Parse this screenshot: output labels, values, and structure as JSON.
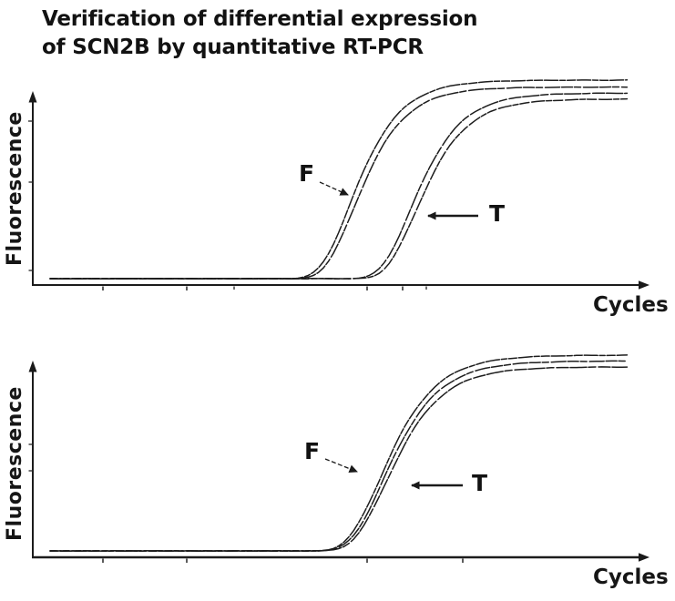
{
  "title": {
    "line1": "Verification of differential expression",
    "line2": "of SCN2B by quantitative RT-PCR"
  },
  "chart_data": [
    {
      "panel": "top",
      "type": "line",
      "xlabel": "Cycles",
      "ylabel": "Fluorescence",
      "x_axis": {
        "quantity": "PCR cycle number",
        "range_cycles": [
          0,
          40
        ],
        "tick_labels": "none"
      },
      "y_axis": {
        "quantity": "fluorescence (arbitrary units)",
        "range": [
          0,
          1
        ],
        "tick_labels": "none"
      },
      "annotations": [
        {
          "label": "F",
          "points_to": "curve pair rising earlier"
        },
        {
          "label": "T",
          "points_to": "curve pair rising later"
        }
      ],
      "series": [
        {
          "name": "F-1",
          "group": "F",
          "shape": "gompertz-sigmoid",
          "inflection_cycle": 20.7,
          "scale_cycles": 2.0,
          "plateau": 1.0
        },
        {
          "name": "F-2",
          "group": "F",
          "shape": "gompertz-sigmoid",
          "inflection_cycle": 21.0,
          "scale_cycles": 2.0,
          "plateau": 0.965
        },
        {
          "name": "T-1",
          "group": "T",
          "shape": "gompertz-sigmoid",
          "inflection_cycle": 24.9,
          "scale_cycles": 2.0,
          "plateau": 0.935
        },
        {
          "name": "T-2",
          "group": "T",
          "shape": "gompertz-sigmoid",
          "inflection_cycle": 25.25,
          "scale_cycles": 2.0,
          "plateau": 0.905
        }
      ],
      "summary": "F amplifies ~4 cycles earlier than T (differential expression)"
    },
    {
      "panel": "bottom",
      "type": "line",
      "xlabel": "Cycles",
      "ylabel": "Fluorescence",
      "x_axis": {
        "quantity": "PCR cycle number",
        "range_cycles": [
          0,
          40
        ],
        "tick_labels": "none"
      },
      "y_axis": {
        "quantity": "fluorescence (arbitrary units)",
        "range": [
          0,
          1
        ],
        "tick_labels": "none"
      },
      "annotations": [
        {
          "label": "F",
          "points_to": "overlapping curve bundle"
        },
        {
          "label": "T",
          "points_to": "overlapping curve bundle"
        }
      ],
      "series": [
        {
          "name": "F-1",
          "group": "F",
          "shape": "gompertz-sigmoid",
          "inflection_cycle": 22.8,
          "scale_cycles": 2.2,
          "plateau": 1.0
        },
        {
          "name": "F-2",
          "group": "F",
          "shape": "gompertz-sigmoid",
          "inflection_cycle": 23.0,
          "scale_cycles": 2.2,
          "plateau": 0.97
        },
        {
          "name": "T-1",
          "group": "T",
          "shape": "gompertz-sigmoid",
          "inflection_cycle": 23.2,
          "scale_cycles": 2.2,
          "plateau": 0.94
        }
      ],
      "summary": "F and T curves overlap (equal expression)"
    }
  ]
}
